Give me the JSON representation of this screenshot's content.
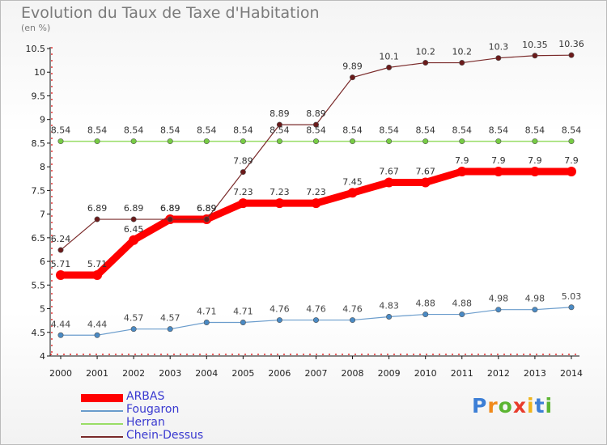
{
  "chart_data": {
    "type": "line",
    "title": "Evolution du Taux de Taxe d'Habitation",
    "ylabel": "(en %)",
    "xlabel": "",
    "categories": [
      "2000",
      "2001",
      "2002",
      "2003",
      "2004",
      "2005",
      "2006",
      "2007",
      "2008",
      "2009",
      "2010",
      "2011",
      "2012",
      "2013",
      "2014"
    ],
    "ylim": [
      4,
      10.5
    ],
    "yticks": [
      "4",
      "4.5",
      "5",
      "5.5",
      "6",
      "6.5",
      "7",
      "7.5",
      "8",
      "8.5",
      "9",
      "9.5",
      "10",
      "10.5"
    ],
    "grid": false,
    "legend_position": "bottom-left",
    "series": [
      {
        "name": "ARBAS",
        "color": "#ff0000",
        "marker_color": "#ff0000",
        "values": [
          5.71,
          5.71,
          6.45,
          6.89,
          6.89,
          7.23,
          7.23,
          7.23,
          7.45,
          7.67,
          7.67,
          7.9,
          7.9,
          7.9,
          7.9
        ],
        "labels": [
          "5.71",
          "5.71",
          "6.45",
          "6.89",
          "6.89",
          "7.23",
          "7.23",
          "7.23",
          "7.45",
          "7.67",
          "7.67",
          "7.9",
          "7.9",
          "7.9",
          "7.9"
        ]
      },
      {
        "name": "Fougaron",
        "color": "#6a9ccc",
        "marker_color": "#4a8ac4",
        "values": [
          4.44,
          4.44,
          4.57,
          4.57,
          4.71,
          4.71,
          4.76,
          4.76,
          4.76,
          4.83,
          4.88,
          4.88,
          4.98,
          4.98,
          5.03
        ],
        "labels": [
          "4.44",
          "4.44",
          "4.57",
          "4.57",
          "4.71",
          "4.71",
          "4.76",
          "4.76",
          "4.76",
          "4.83",
          "4.88",
          "4.88",
          "4.98",
          "4.98",
          "5.03"
        ]
      },
      {
        "name": "Herran",
        "color": "#99dd66",
        "marker_color": "#77cc44",
        "values": [
          8.54,
          8.54,
          8.54,
          8.54,
          8.54,
          8.54,
          8.54,
          8.54,
          8.54,
          8.54,
          8.54,
          8.54,
          8.54,
          8.54,
          8.54
        ],
        "labels": [
          "8.54",
          "8.54",
          "8.54",
          "8.54",
          "8.54",
          "8.54",
          "8.54",
          "8.54",
          "8.54",
          "8.54",
          "8.54",
          "8.54",
          "8.54",
          "8.54",
          "8.54"
        ]
      },
      {
        "name": "Chein-Dessus",
        "color": "#7a2a2a",
        "marker_color": "#6b1a1a",
        "values": [
          6.24,
          6.89,
          6.89,
          6.89,
          6.89,
          7.89,
          8.89,
          8.89,
          9.89,
          10.1,
          10.2,
          10.2,
          10.3,
          10.35,
          10.36
        ],
        "labels": [
          "6.24",
          "6.89",
          "6.89",
          "6.89",
          "6.89",
          "7.89",
          "8.89",
          "8.89",
          "9.89",
          "10.1",
          "10.2",
          "10.2",
          "10.3",
          "10.35",
          "10.36"
        ]
      }
    ]
  },
  "brand": {
    "letters": [
      "P",
      "r",
      "o",
      "x",
      "i",
      "t",
      "i"
    ],
    "colors": [
      "#3d7fd6",
      "#f08a1c",
      "#5cb532",
      "#e83c2c",
      "#f0b41c",
      "#3d7fd6",
      "#5cb532"
    ]
  }
}
